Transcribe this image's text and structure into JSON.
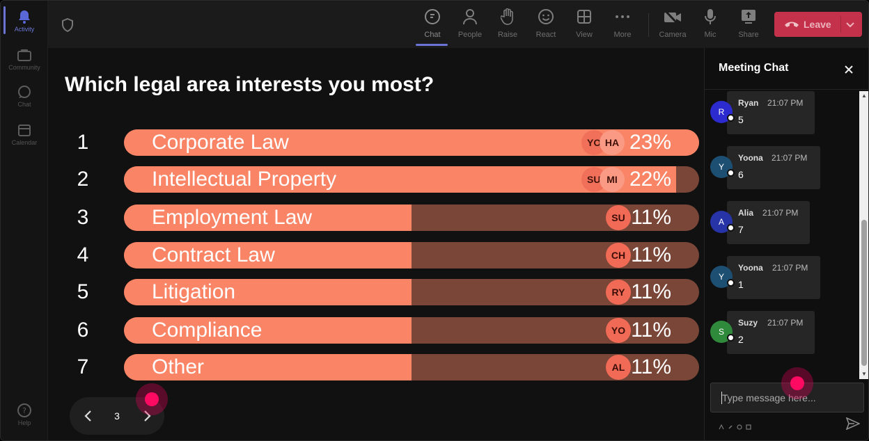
{
  "rail": {
    "items": [
      {
        "label": "Activity",
        "icon": "bell-icon",
        "active": true
      },
      {
        "label": "Community",
        "icon": "community-icon"
      },
      {
        "label": "Chat",
        "icon": "chat-icon"
      },
      {
        "label": "Calendar",
        "icon": "calendar-icon"
      }
    ],
    "help": {
      "label": "Help",
      "icon": "help-icon"
    }
  },
  "toolbar": {
    "buttons": [
      {
        "label": "Chat",
        "icon": "chat-icon",
        "active": true
      },
      {
        "label": "People",
        "icon": "people-icon"
      },
      {
        "label": "Raise",
        "icon": "hand-icon"
      },
      {
        "label": "React",
        "icon": "smiley-icon"
      },
      {
        "label": "View",
        "icon": "grid-icon"
      },
      {
        "label": "More",
        "icon": "more-icon"
      },
      {
        "label": "Camera",
        "icon": "camera-off-icon"
      },
      {
        "label": "Mic",
        "icon": "mic-icon"
      },
      {
        "label": "Share",
        "icon": "share-icon"
      }
    ],
    "leave_label": "Leave"
  },
  "poll": {
    "question": "Which legal area interests you most?",
    "page": "3",
    "options": [
      {
        "num": "1",
        "label": "Corporate Law",
        "pct": "23%",
        "fill": 1.0,
        "avatars": [
          "YO",
          "HA"
        ]
      },
      {
        "num": "2",
        "label": "Intellectual Property",
        "pct": "22%",
        "fill": 0.96,
        "avatars": [
          "SU",
          "MI"
        ]
      },
      {
        "num": "3",
        "label": "Employment Law",
        "pct": "11%",
        "fill": 0.5,
        "avatars": [
          "SU"
        ]
      },
      {
        "num": "4",
        "label": "Contract Law",
        "pct": "11%",
        "fill": 0.5,
        "avatars": [
          "CH"
        ]
      },
      {
        "num": "5",
        "label": "Litigation",
        "pct": "11%",
        "fill": 0.5,
        "avatars": [
          "RY"
        ]
      },
      {
        "num": "6",
        "label": "Compliance",
        "pct": "11%",
        "fill": 0.5,
        "avatars": [
          "YO"
        ]
      },
      {
        "num": "7",
        "label": "Other",
        "pct": "11%",
        "fill": 0.5,
        "avatars": [
          "AL"
        ]
      }
    ]
  },
  "chat": {
    "title": "Meeting Chat",
    "placeholder": "Type message here...",
    "messages": [
      {
        "initial": "R",
        "name": "Ryan",
        "time": "21:07 PM",
        "text": "5",
        "color": "#2b2bd0"
      },
      {
        "initial": "Y",
        "name": "Yoona",
        "time": "21:07 PM",
        "text": "6",
        "color": "#1d4f73"
      },
      {
        "initial": "A",
        "name": "Alia",
        "time": "21:07 PM",
        "text": "7",
        "color": "#2734a8"
      },
      {
        "initial": "Y",
        "name": "Yoona",
        "time": "21:07 PM",
        "text": "1",
        "color": "#1d4f73"
      },
      {
        "initial": "S",
        "name": "Suzy",
        "time": "21:07 PM",
        "text": "2",
        "color": "#2f8a3c"
      }
    ]
  },
  "colors": {
    "bar_fill": "#f98466",
    "bar_track": "#7a4638",
    "leave": "#c4314b",
    "accent": "#6b73d6"
  }
}
